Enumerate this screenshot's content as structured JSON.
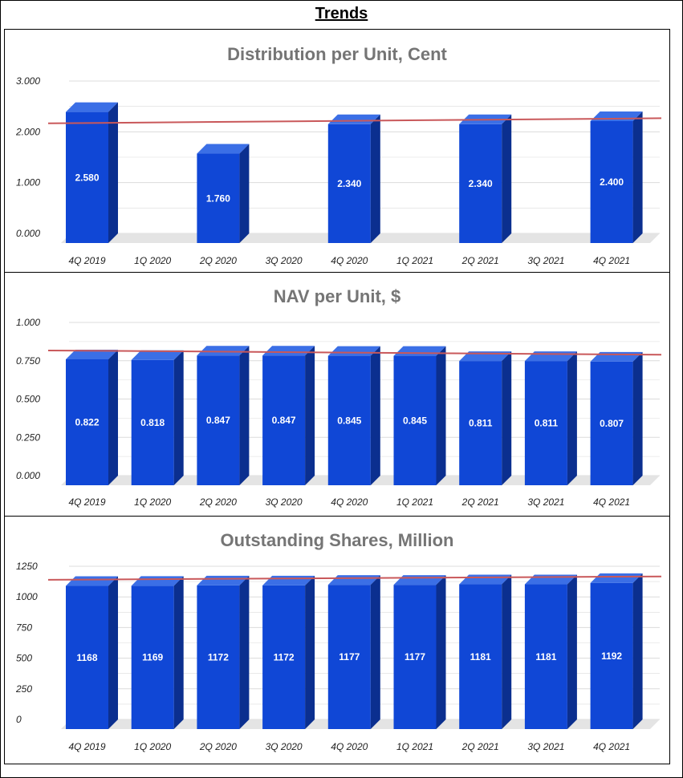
{
  "page_title": "Trends",
  "colors": {
    "bar_front": "#1047d6",
    "bar_top": "#3b6fe6",
    "bar_side": "#0b2f8f",
    "trend": "#c9585a",
    "grid": "#dcdcdc",
    "floor": "#e4e4e4"
  },
  "chart_data": [
    {
      "type": "bar",
      "title": "Distribution per Unit, Cent",
      "categories": [
        "4Q 2019",
        "1Q 2020",
        "2Q 2020",
        "3Q 2020",
        "4Q 2020",
        "1Q 2021",
        "2Q 2021",
        "3Q 2021",
        "4Q 2021"
      ],
      "values": [
        2.58,
        null,
        1.76,
        null,
        2.34,
        null,
        2.34,
        null,
        2.4
      ],
      "labels": [
        "2.580",
        "",
        "1.760",
        "",
        "2.340",
        "",
        "2.340",
        "",
        "2.400"
      ],
      "ylim": [
        0,
        3
      ],
      "yticks": [
        0,
        1,
        2,
        3
      ],
      "ytick_labels": [
        "0.000",
        "1.000",
        "2.000",
        "3.000"
      ],
      "trendline": [
        2.23,
        2.33
      ],
      "grid": true
    },
    {
      "type": "bar",
      "title": "NAV per Unit, $",
      "categories": [
        "4Q 2019",
        "1Q 2020",
        "2Q 2020",
        "3Q 2020",
        "4Q 2020",
        "1Q 2021",
        "2Q 2021",
        "3Q 2021",
        "4Q 2021"
      ],
      "values": [
        0.822,
        0.818,
        0.847,
        0.847,
        0.845,
        0.845,
        0.811,
        0.811,
        0.807
      ],
      "labels": [
        "0.822",
        "0.818",
        "0.847",
        "0.847",
        "0.845",
        "0.845",
        "0.811",
        "0.811",
        "0.807"
      ],
      "ylim": [
        0,
        1
      ],
      "yticks": [
        0,
        0.25,
        0.5,
        0.75,
        1
      ],
      "ytick_labels": [
        "0.000",
        "0.250",
        "0.500",
        "0.750",
        "1.000"
      ],
      "trendline": [
        0.838,
        0.81
      ],
      "grid": true
    },
    {
      "type": "bar",
      "title": "Outstanding Shares, Million",
      "categories": [
        "4Q 2019",
        "1Q 2020",
        "2Q 2020",
        "3Q 2020",
        "4Q 2020",
        "1Q 2021",
        "2Q 2021",
        "3Q 2021",
        "4Q 2021"
      ],
      "values": [
        1168,
        1169,
        1172,
        1172,
        1177,
        1177,
        1181,
        1181,
        1192
      ],
      "labels": [
        "1168",
        "1169",
        "1172",
        "1172",
        "1177",
        "1177",
        "1181",
        "1181",
        "1192"
      ],
      "ylim": [
        0,
        1250
      ],
      "yticks": [
        0,
        250,
        500,
        750,
        1000,
        1250
      ],
      "ytick_labels": [
        "0",
        "250",
        "500",
        "750",
        "1000",
        "1250"
      ],
      "trendline": [
        1166,
        1193
      ],
      "grid": true
    }
  ]
}
